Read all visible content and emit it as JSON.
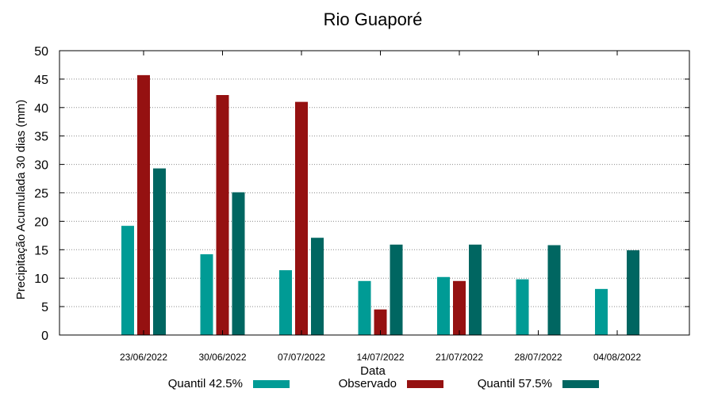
{
  "chart_data": {
    "type": "bar",
    "title": "Rio Guaporé",
    "xlabel": "Data",
    "ylabel": "Precipitação Acumulada 30 dias (mm)",
    "ylim": [
      0,
      50
    ],
    "yticks": [
      0,
      5,
      10,
      15,
      20,
      25,
      30,
      35,
      40,
      45,
      50
    ],
    "grid": "horizontal-dotted",
    "legend_position": "bottom",
    "categories": [
      "23/06/2022",
      "30/06/2022",
      "07/07/2022",
      "14/07/2022",
      "21/07/2022",
      "28/07/2022",
      "04/08/2022"
    ],
    "series": [
      {
        "name": "Quantil 42.5%",
        "color": "#009B95",
        "values": [
          19.2,
          14.2,
          11.4,
          9.5,
          10.2,
          9.8,
          8.1
        ]
      },
      {
        "name": "Observado",
        "color": "#951111",
        "values": [
          45.7,
          42.2,
          41.0,
          4.5,
          9.5,
          null,
          null
        ]
      },
      {
        "name": "Quantil 57.5%",
        "color": "#006661",
        "values": [
          29.3,
          25.1,
          17.1,
          15.9,
          15.9,
          15.8,
          14.9
        ]
      }
    ]
  }
}
